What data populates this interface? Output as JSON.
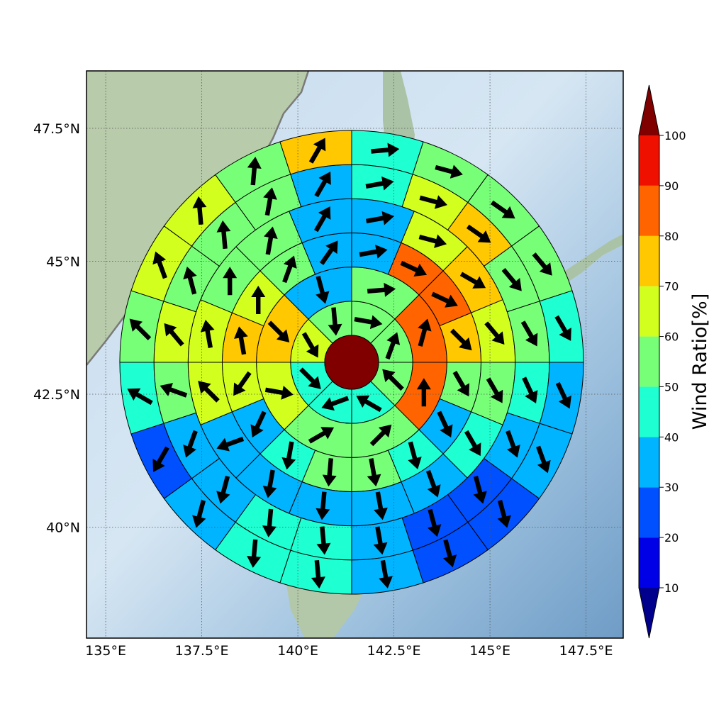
{
  "chart_data": {
    "type": "polar_sector_map",
    "xlabel": "",
    "ylabel": "",
    "lon_ticks": [
      "135°E",
      "137.5°E",
      "140°E",
      "142.5°E",
      "145°E",
      "147.5°E"
    ],
    "lon_tick_values": [
      135,
      137.5,
      140,
      142.5,
      145,
      147.5
    ],
    "lat_ticks": [
      "47.5°N",
      "45°N",
      "42.5°N",
      "40°N"
    ],
    "lat_tick_values": [
      47.5,
      45,
      42.5,
      40
    ],
    "grid": true,
    "center": {
      "lon": 141.4,
      "lat": 43.1,
      "value": 100
    },
    "rings": [
      {
        "ring": 1,
        "sectors": 8,
        "values": [
          55,
          55,
          55,
          45,
          45,
          45,
          65,
          55
        ],
        "wind_deg": [
          100,
          20,
          315,
          300,
          250,
          135,
          150,
          175
        ]
      },
      {
        "ring": 2,
        "sectors": 8,
        "values": [
          55,
          85,
          85,
          55,
          55,
          65,
          75,
          35
        ],
        "wind_deg": [
          85,
          15,
          0,
          45,
          60,
          100,
          135,
          165
        ]
      },
      {
        "ring": 3,
        "sectors": 16,
        "values": [
          35,
          85,
          85,
          75,
          55,
          35,
          45,
          55,
          55,
          45,
          35,
          65,
          75,
          65,
          55,
          35
        ],
        "wind_deg": [
          80,
          115,
          115,
          135,
          150,
          155,
          165,
          170,
          185,
          190,
          205,
          215,
          350,
          0,
          20,
          35
        ]
      },
      {
        "ring": 4,
        "sectors": 16,
        "values": [
          35,
          65,
          75,
          65,
          55,
          45,
          35,
          35,
          35,
          35,
          35,
          65,
          65,
          55,
          55,
          35
        ],
        "wind_deg": [
          80,
          105,
          120,
          140,
          150,
          150,
          160,
          170,
          185,
          190,
          250,
          315,
          350,
          0,
          10,
          30
        ]
      },
      {
        "ring": 5,
        "sectors": 20,
        "values": [
          45,
          65,
          75,
          55,
          55,
          45,
          35,
          25,
          25,
          35,
          45,
          45,
          35,
          35,
          55,
          65,
          55,
          55,
          55,
          35
        ],
        "wind_deg": [
          80,
          105,
          125,
          140,
          150,
          155,
          160,
          165,
          165,
          170,
          175,
          185,
          195,
          200,
          290,
          320,
          345,
          355,
          10,
          30
        ]
      },
      {
        "ring": 6,
        "sectors": 20,
        "values": [
          45,
          55,
          55,
          55,
          45,
          35,
          35,
          25,
          25,
          35,
          45,
          45,
          35,
          25,
          45,
          55,
          65,
          65,
          55,
          75
        ],
        "wind_deg": [
          85,
          105,
          125,
          140,
          150,
          155,
          160,
          165,
          165,
          170,
          175,
          185,
          195,
          210,
          300,
          315,
          340,
          355,
          5,
          30
        ]
      }
    ],
    "colorbar": {
      "label": "Wind Ratio[%]",
      "ticks": [
        "10",
        "20",
        "30",
        "40",
        "50",
        "60",
        "70",
        "80",
        "90",
        "100"
      ],
      "bounds": [
        10,
        20,
        30,
        40,
        50,
        60,
        70,
        80,
        90,
        100
      ],
      "colors": [
        "#0000e6",
        "#0050ff",
        "#00b4ff",
        "#1effd2",
        "#78ff78",
        "#d2ff1e",
        "#ffc800",
        "#ff6400",
        "#f01000"
      ],
      "under_color": "#00008c",
      "over_color": "#800000",
      "extend": "both"
    },
    "land_color": "#b5cda8",
    "sea_color": "#a9c8e2"
  }
}
